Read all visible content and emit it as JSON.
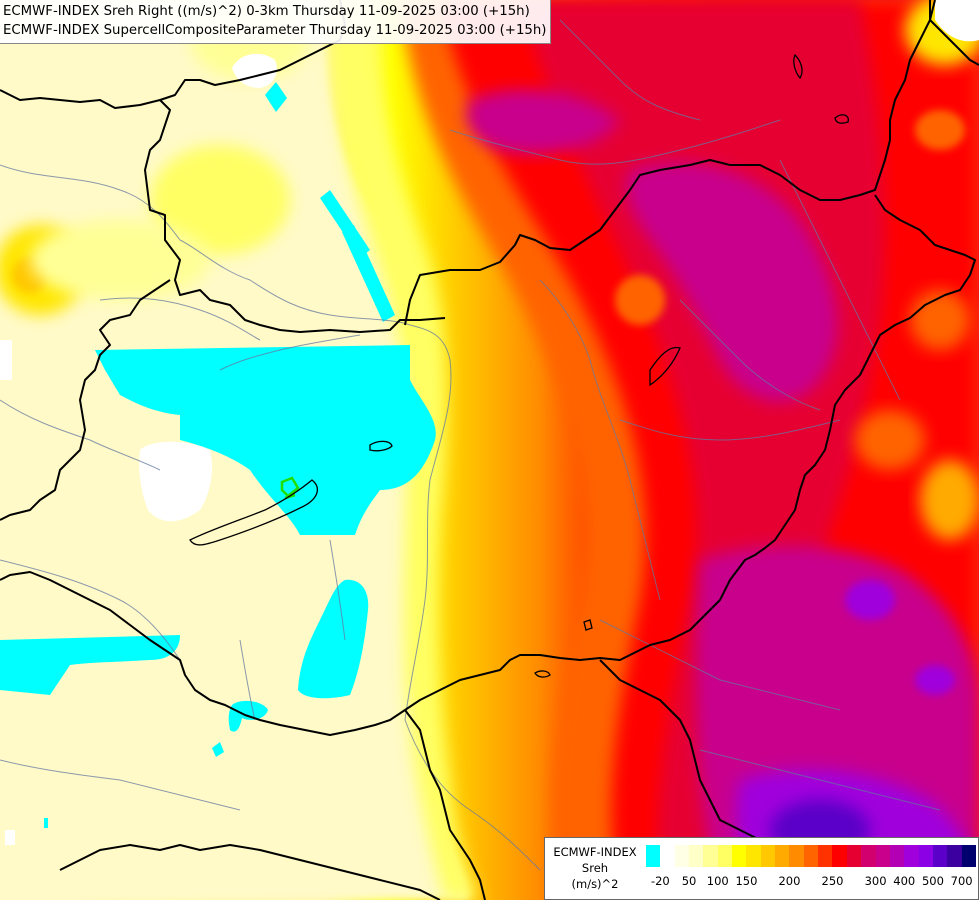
{
  "titles": {
    "line1": "ECMWF-INDEX Sreh Right ((m/s)^2) 0-3km Thursday 11-09-2025 03:00 (+15h)",
    "line2": "ECMWF-INDEX SupercellCompositeParameter Thursday 11-09-2025 03:00 (+15h)"
  },
  "legend": {
    "model": "ECMWF-INDEX",
    "variable": "Sreh",
    "unit": "(m/s)^2",
    "colors": [
      "#00ffff",
      "#ffffff",
      "#ffffe6",
      "#ffffc8",
      "#ffff96",
      "#ffff64",
      "#ffff00",
      "#ffe600",
      "#ffc800",
      "#ffaa00",
      "#ff8c00",
      "#ff6400",
      "#ff3200",
      "#ff0000",
      "#e60032",
      "#d2006e",
      "#c8008c",
      "#b400b4",
      "#a000dc",
      "#8c00e6",
      "#5a00c8",
      "#3c00a0",
      "#00006e"
    ],
    "ticks": [
      "-20",
      "50",
      "100",
      "150",
      "200",
      "250",
      "300",
      "400",
      "500",
      "700"
    ]
  },
  "colors": {
    "cyan": "#00ffff",
    "cream": "#fffac8",
    "yellow": "#ffff00",
    "orange": "#ff8c00",
    "red": "#ff0000",
    "magenta": "#d2006e",
    "purple": "#9600dc",
    "border": "#000000",
    "river": "#6478a0"
  }
}
